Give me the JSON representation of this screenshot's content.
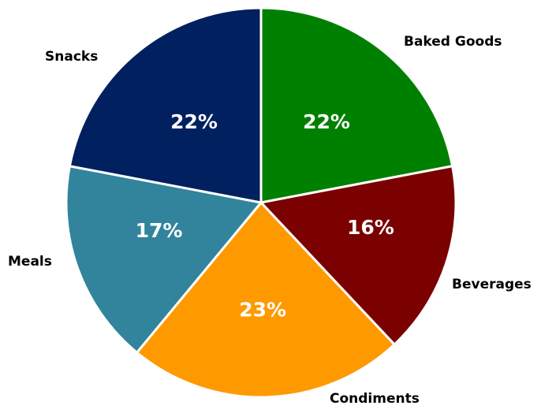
{
  "chart_data": {
    "type": "pie",
    "title": "",
    "start_angle_deg": 0,
    "direction": "clockwise",
    "slices": [
      {
        "label": "Baked Goods",
        "value": 22,
        "value_label": "22%",
        "color": "#008000"
      },
      {
        "label": "Beverages",
        "value": 16,
        "value_label": "16%",
        "color": "#7b0000"
      },
      {
        "label": "Condiments",
        "value": 23,
        "value_label": "23%",
        "color": "#ff9900"
      },
      {
        "label": "Meals",
        "value": 17,
        "value_label": "17%",
        "color": "#31849b"
      },
      {
        "label": "Snacks",
        "value": 22,
        "value_label": "22%",
        "color": "#002060"
      }
    ],
    "legend": "none"
  }
}
